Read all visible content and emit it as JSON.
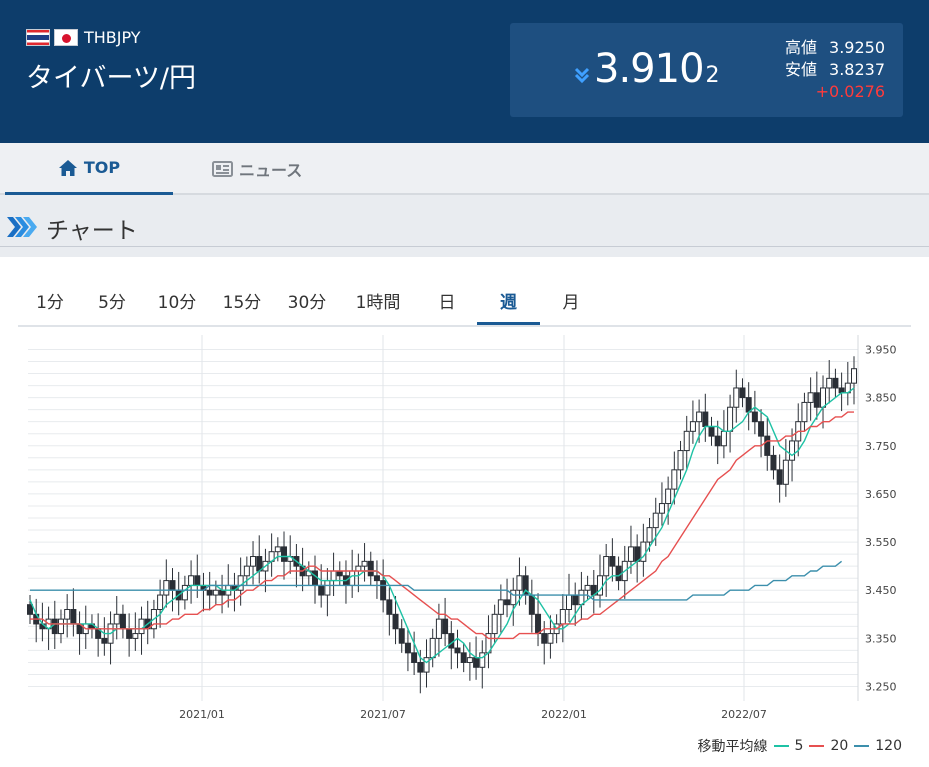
{
  "header": {
    "pair_code": "THBJPY",
    "pair_name": "タイバーツ/円",
    "price_main": "3.910",
    "price_small": "2",
    "high_label": "高値",
    "high_value": "3.9250",
    "low_label": "安値",
    "low_value": "3.8237",
    "change": "+0.0276",
    "icons": {
      "flag_base": "thailand-flag",
      "flag_quote": "japan-flag",
      "direction": "double-chevron-down"
    }
  },
  "tabs": [
    {
      "label": "TOP",
      "icon": "home-icon",
      "active": true
    },
    {
      "label": "ニュース",
      "icon": "newspaper-icon",
      "active": false
    }
  ],
  "section": {
    "title": "チャート",
    "icon": "triple-chevron-right-icon"
  },
  "periods": [
    "1分",
    "5分",
    "10分",
    "15分",
    "30分",
    "1時間",
    "日",
    "週",
    "月"
  ],
  "active_period": "週",
  "legend": {
    "label": "移動平均線",
    "ma5": "5",
    "ma20": "20",
    "ma120": "120"
  },
  "colors": {
    "ma5": "#1ec2a5",
    "ma20": "#e65050",
    "ma120": "#3c8fac",
    "header_bg": "#0d3d6b",
    "accent": "#1a5a94",
    "change_up": "#ff3b3b"
  },
  "chart_data": {
    "type": "candlestick",
    "y_ticks": [
      "3.950",
      "3.850",
      "3.750",
      "3.650",
      "3.550",
      "3.450",
      "3.350",
      "3.250"
    ],
    "x_ticks": [
      "2021/01",
      "2021/07",
      "2022/01",
      "2022/07"
    ],
    "ylim": [
      3.22,
      3.98
    ],
    "grid": true,
    "close_series_approx": [
      3.4,
      3.38,
      3.37,
      3.39,
      3.36,
      3.39,
      3.41,
      3.38,
      3.36,
      3.38,
      3.37,
      3.35,
      3.34,
      3.38,
      3.4,
      3.37,
      3.35,
      3.36,
      3.39,
      3.37,
      3.41,
      3.44,
      3.47,
      3.45,
      3.43,
      3.46,
      3.48,
      3.46,
      3.45,
      3.44,
      3.45,
      3.44,
      3.46,
      3.45,
      3.48,
      3.5,
      3.52,
      3.49,
      3.51,
      3.53,
      3.54,
      3.51,
      3.52,
      3.5,
      3.48,
      3.49,
      3.46,
      3.44,
      3.47,
      3.49,
      3.48,
      3.46,
      3.49,
      3.5,
      3.51,
      3.48,
      3.47,
      3.43,
      3.4,
      3.37,
      3.34,
      3.32,
      3.3,
      3.28,
      3.31,
      3.35,
      3.39,
      3.36,
      3.33,
      3.32,
      3.3,
      3.31,
      3.29,
      3.32,
      3.36,
      3.4,
      3.43,
      3.42,
      3.45,
      3.48,
      3.44,
      3.4,
      3.36,
      3.34,
      3.36,
      3.38,
      3.41,
      3.44,
      3.42,
      3.45,
      3.46,
      3.44,
      3.48,
      3.52,
      3.5,
      3.47,
      3.51,
      3.54,
      3.51,
      3.55,
      3.58,
      3.61,
      3.63,
      3.66,
      3.7,
      3.74,
      3.78,
      3.8,
      3.82,
      3.79,
      3.77,
      3.75,
      3.78,
      3.83,
      3.87,
      3.85,
      3.82,
      3.8,
      3.77,
      3.73,
      3.7,
      3.67,
      3.72,
      3.76,
      3.8,
      3.84,
      3.86,
      3.83,
      3.87,
      3.89,
      3.87,
      3.86,
      3.88,
      3.91
    ],
    "series": [
      {
        "name": "5",
        "values": [
          3.43,
          3.4,
          3.38,
          3.37,
          3.38,
          3.38,
          3.38,
          3.38,
          3.38,
          3.38,
          3.38,
          3.37,
          3.36,
          3.36,
          3.37,
          3.37,
          3.37,
          3.37,
          3.37,
          3.38,
          3.39,
          3.4,
          3.42,
          3.43,
          3.44,
          3.45,
          3.46,
          3.46,
          3.46,
          3.46,
          3.46,
          3.45,
          3.45,
          3.45,
          3.46,
          3.47,
          3.48,
          3.49,
          3.5,
          3.51,
          3.52,
          3.52,
          3.52,
          3.51,
          3.5,
          3.49,
          3.48,
          3.47,
          3.47,
          3.47,
          3.47,
          3.47,
          3.48,
          3.48,
          3.49,
          3.49,
          3.49,
          3.48,
          3.46,
          3.43,
          3.4,
          3.37,
          3.34,
          3.31,
          3.3,
          3.31,
          3.32,
          3.33,
          3.34,
          3.35,
          3.34,
          3.32,
          3.31,
          3.31,
          3.32,
          3.34,
          3.36,
          3.38,
          3.41,
          3.43,
          3.45,
          3.44,
          3.43,
          3.41,
          3.39,
          3.37,
          3.37,
          3.38,
          3.4,
          3.42,
          3.43,
          3.44,
          3.45,
          3.47,
          3.48,
          3.48,
          3.49,
          3.5,
          3.51,
          3.52,
          3.54,
          3.56,
          3.58,
          3.61,
          3.64,
          3.67,
          3.7,
          3.74,
          3.77,
          3.79,
          3.79,
          3.79,
          3.78,
          3.78,
          3.79,
          3.8,
          3.82,
          3.83,
          3.82,
          3.81,
          3.78,
          3.75,
          3.74,
          3.73,
          3.74,
          3.76,
          3.79,
          3.81,
          3.83,
          3.84,
          3.85,
          3.86,
          3.86,
          3.87
        ]
      },
      {
        "name": "20",
        "values": [
          3.39,
          3.39,
          3.39,
          3.38,
          3.38,
          3.38,
          3.38,
          3.38,
          3.38,
          3.37,
          3.37,
          3.37,
          3.37,
          3.37,
          3.37,
          3.37,
          3.37,
          3.37,
          3.37,
          3.37,
          3.38,
          3.38,
          3.38,
          3.39,
          3.39,
          3.4,
          3.4,
          3.4,
          3.41,
          3.41,
          3.42,
          3.42,
          3.43,
          3.43,
          3.44,
          3.45,
          3.45,
          3.46,
          3.47,
          3.47,
          3.48,
          3.48,
          3.49,
          3.49,
          3.49,
          3.5,
          3.5,
          3.49,
          3.49,
          3.49,
          3.49,
          3.49,
          3.49,
          3.49,
          3.49,
          3.49,
          3.49,
          3.48,
          3.48,
          3.47,
          3.46,
          3.45,
          3.44,
          3.43,
          3.42,
          3.41,
          3.4,
          3.4,
          3.39,
          3.39,
          3.38,
          3.37,
          3.36,
          3.36,
          3.35,
          3.35,
          3.35,
          3.35,
          3.35,
          3.36,
          3.36,
          3.36,
          3.36,
          3.37,
          3.37,
          3.37,
          3.38,
          3.38,
          3.38,
          3.39,
          3.39,
          3.4,
          3.4,
          3.41,
          3.42,
          3.43,
          3.44,
          3.45,
          3.46,
          3.47,
          3.48,
          3.49,
          3.51,
          3.52,
          3.54,
          3.56,
          3.58,
          3.6,
          3.62,
          3.64,
          3.66,
          3.68,
          3.69,
          3.7,
          3.72,
          3.73,
          3.74,
          3.75,
          3.75,
          3.76,
          3.76,
          3.76,
          3.77,
          3.77,
          3.78,
          3.78,
          3.79,
          3.79,
          3.8,
          3.8,
          3.81,
          3.81,
          3.82,
          3.82
        ]
      },
      {
        "name": "120",
        "values": [
          3.45,
          3.45,
          3.45,
          3.45,
          3.45,
          3.45,
          3.45,
          3.45,
          3.45,
          3.45,
          3.45,
          3.45,
          3.45,
          3.45,
          3.45,
          3.45,
          3.45,
          3.45,
          3.45,
          3.45,
          3.45,
          3.45,
          3.45,
          3.45,
          3.45,
          3.45,
          3.45,
          3.45,
          3.45,
          3.46,
          3.46,
          3.46,
          3.46,
          3.46,
          3.46,
          3.46,
          3.46,
          3.46,
          3.46,
          3.46,
          3.46,
          3.46,
          3.46,
          3.46,
          3.46,
          3.46,
          3.46,
          3.46,
          3.46,
          3.46,
          3.46,
          3.46,
          3.46,
          3.46,
          3.46,
          3.46,
          3.46,
          3.46,
          3.46,
          3.46,
          3.46,
          3.46,
          3.45,
          3.45,
          3.45,
          3.45,
          3.45,
          3.45,
          3.45,
          3.45,
          3.45,
          3.45,
          3.45,
          3.45,
          3.45,
          3.45,
          3.45,
          3.45,
          3.44,
          3.44,
          3.44,
          3.44,
          3.44,
          3.44,
          3.44,
          3.44,
          3.44,
          3.44,
          3.44,
          3.44,
          3.44,
          3.43,
          3.43,
          3.43,
          3.43,
          3.43,
          3.43,
          3.43,
          3.43,
          3.43,
          3.43,
          3.43,
          3.43,
          3.43,
          3.43,
          3.43,
          3.43,
          3.44,
          3.44,
          3.44,
          3.44,
          3.44,
          3.44,
          3.45,
          3.45,
          3.45,
          3.45,
          3.46,
          3.46,
          3.46,
          3.47,
          3.47,
          3.47,
          3.48,
          3.48,
          3.48,
          3.49,
          3.49,
          3.5,
          3.5,
          3.5,
          3.51
        ]
      }
    ]
  }
}
